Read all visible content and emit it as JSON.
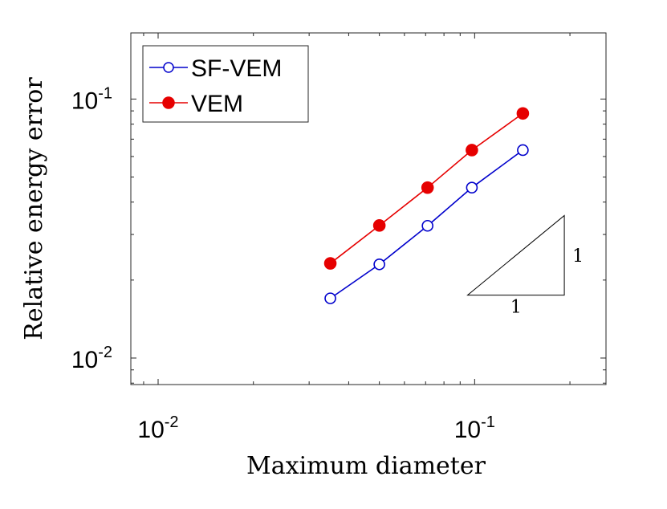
{
  "chart_data": {
    "type": "line",
    "xscale": "log",
    "yscale": "log",
    "xlabel": "Maximum diameter",
    "ylabel": "Relative energy error",
    "xlim": [
      0.0082,
      0.26
    ],
    "ylim": [
      0.0079,
      0.18
    ],
    "xticks": [
      {
        "value": 0.01,
        "base": "10",
        "exp": "-2"
      },
      {
        "value": 0.1,
        "base": "10",
        "exp": "-1"
      }
    ],
    "yticks": [
      {
        "value": 0.01,
        "base": "10",
        "exp": "-2"
      },
      {
        "value": 0.1,
        "base": "10",
        "exp": "-1"
      }
    ],
    "x": [
      0.035,
      0.05,
      0.071,
      0.098,
      0.142
    ],
    "series": [
      {
        "name": "SF-VEM",
        "values": [
          0.017,
          0.023,
          0.0324,
          0.0455,
          0.0635
        ],
        "color": "#0000cc",
        "marker": "open-circle"
      },
      {
        "name": "VEM",
        "values": [
          0.0232,
          0.0325,
          0.0455,
          0.0635,
          0.088
        ],
        "color": "#e60000",
        "marker": "filled-circle"
      }
    ],
    "legend": {
      "position": "top-left",
      "entries": [
        "SF-VEM",
        "VEM"
      ]
    },
    "slope_triangle": {
      "vertices": {
        "left": [
          0.095,
          0.0175
        ],
        "right": [
          0.192,
          0.0175
        ],
        "top": [
          0.192,
          0.0355
        ]
      },
      "run_label": "1",
      "rise_label": "1"
    },
    "grid": false
  }
}
